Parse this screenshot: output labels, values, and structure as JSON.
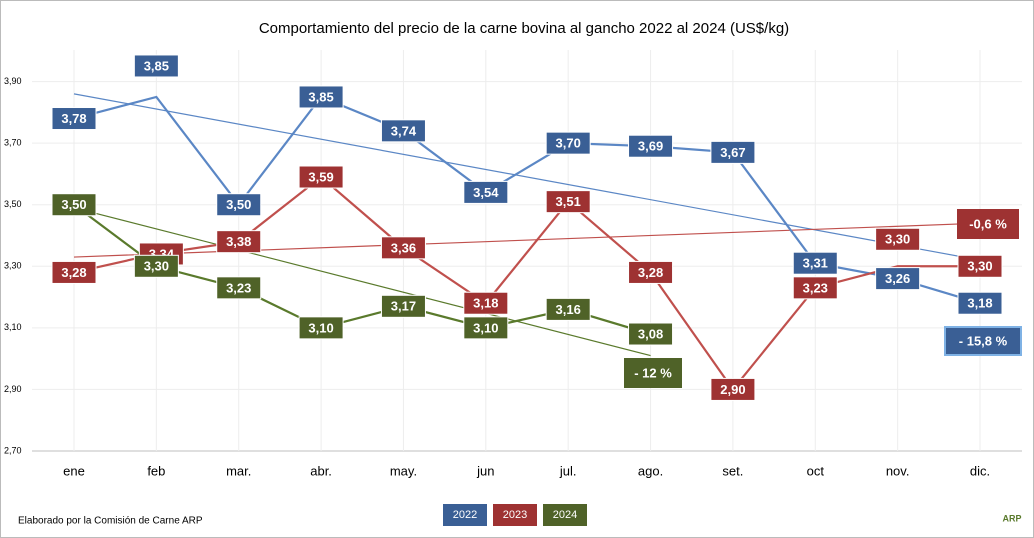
{
  "chart_data": {
    "type": "line",
    "title": "Comportamiento del precio de la carne bovina al gancho 2022 al 2024 (US$/kg)",
    "categories": [
      "ene",
      "feb",
      "mar.",
      "abr.",
      "may.",
      "jun",
      "jul.",
      "ago.",
      "set.",
      "oct",
      "nov.",
      "dic."
    ],
    "ylim": [
      2.7,
      4.1
    ],
    "yticks": [
      {
        "value": 2.7,
        "label": "2,70"
      },
      {
        "value": 2.9,
        "label": "2,90"
      },
      {
        "value": 3.1,
        "label": "3,10"
      },
      {
        "value": 3.3,
        "label": "3,30"
      },
      {
        "value": 3.5,
        "label": "3,50"
      },
      {
        "value": 3.7,
        "label": "3,70"
      },
      {
        "value": 3.9,
        "label": "3,90"
      }
    ],
    "grid": true,
    "series": [
      {
        "name": "2022",
        "color": "#5b87c5",
        "label_color": "#3a5f95",
        "values": [
          3.78,
          3.85,
          3.5,
          3.85,
          3.74,
          3.54,
          3.7,
          3.69,
          3.67,
          3.31,
          3.26,
          3.18
        ],
        "value_labels": [
          "3,78",
          "3,85",
          "3,50",
          "3,85",
          "3,74",
          "3,54",
          "3,70",
          "3,69",
          "3,67",
          "3,31",
          "3,26",
          "3,18"
        ],
        "trend": [
          3.86,
          3.32
        ]
      },
      {
        "name": "2023",
        "color": "#c0504d",
        "label_color": "#9e3232",
        "values": [
          3.28,
          3.34,
          3.38,
          3.59,
          3.36,
          3.18,
          3.51,
          3.28,
          2.9,
          3.23,
          3.3,
          3.3
        ],
        "value_labels": [
          "3,28",
          "3,34",
          "3,38",
          "3,59",
          "3,36",
          "3,18",
          "3,51",
          "3,28",
          "2,90",
          "3,23",
          "3,30",
          "3,30"
        ],
        "trend": [
          3.33,
          3.44
        ]
      },
      {
        "name": "2024",
        "color": "#5a7a2c",
        "label_color": "#4f6228",
        "values": [
          3.5,
          3.3,
          3.23,
          3.1,
          3.17,
          3.1,
          3.16,
          3.08,
          null,
          null,
          null,
          null
        ],
        "value_labels": [
          "3,50",
          "3,30",
          "3,23",
          "3,10",
          "3,17",
          "3,10",
          "3,16",
          "3,08",
          null,
          null,
          null,
          null
        ],
        "trend": [
          3.49,
          3.01
        ]
      }
    ],
    "annotations": [
      "-0,6 %",
      "- 15,8 %",
      "- 12 %"
    ],
    "footer": "Elaborado por la Comisión de Carne ARP",
    "logo": "ARP"
  }
}
